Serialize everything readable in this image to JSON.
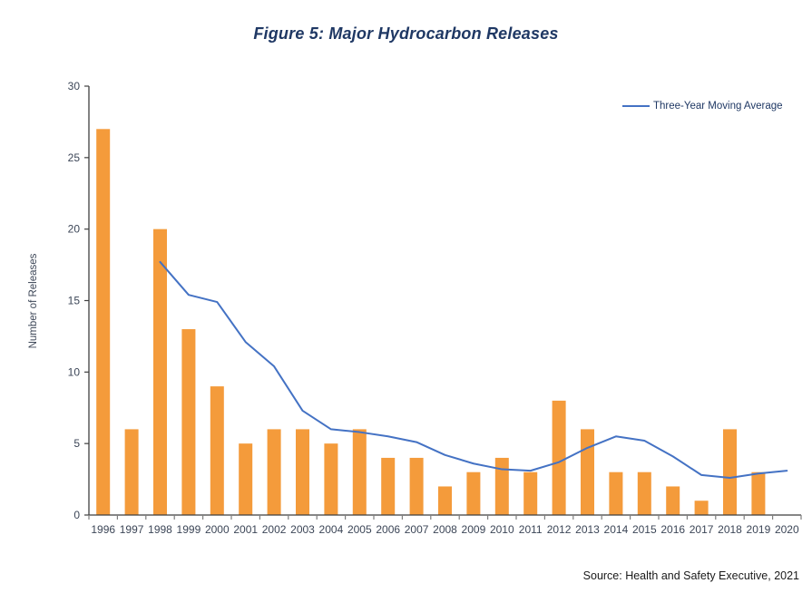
{
  "figure": {
    "title": "Figure 5: Major Hydrocarbon Releases",
    "source": "Source: Health and Safety Executive, 2021"
  },
  "legend": {
    "moving_average_label": "Three-Year Moving Average"
  },
  "y_axis": {
    "title": "Number of Releases",
    "ticks": [
      0,
      5,
      10,
      15,
      20,
      25,
      30
    ],
    "min": 0,
    "max": 30
  },
  "chart_data": {
    "type": "bar",
    "title": "Figure 5: Major Hydrocarbon Releases",
    "xlabel": "",
    "ylabel": "Number of Releases",
    "ylim": [
      0,
      30
    ],
    "grid": false,
    "legend_position": "top-right",
    "categories": [
      "1996",
      "1997",
      "1998",
      "1999",
      "2000",
      "2001",
      "2002",
      "2003",
      "2004",
      "2005",
      "2006",
      "2007",
      "2008",
      "2009",
      "2010",
      "2011",
      "2012",
      "2013",
      "2014",
      "2015",
      "2016",
      "2017",
      "2018",
      "2019",
      "2020"
    ],
    "series": [
      {
        "name": "Major hydrocarbon releases",
        "type": "bar",
        "color": "#F49B3B",
        "values": [
          27,
          6,
          20,
          13,
          9,
          5,
          6,
          6,
          5,
          6,
          4,
          4,
          2,
          3,
          4,
          3,
          8,
          6,
          3,
          3,
          2,
          1,
          6,
          3,
          null
        ]
      },
      {
        "name": "Three-Year Moving Average",
        "type": "line",
        "color": "#4472C4",
        "values": [
          null,
          null,
          17.7,
          15.4,
          14.9,
          12.1,
          10.4,
          7.3,
          6,
          5.8,
          5.5,
          5.1,
          4.2,
          3.6,
          3.2,
          3.1,
          3.7,
          4.7,
          5.5,
          5.2,
          4.1,
          2.8,
          2.6,
          2.9,
          3.1
        ]
      }
    ]
  },
  "colors": {
    "bar": "#F49B3B",
    "line": "#4472C4",
    "title": "#1F3864",
    "axis": "#3F3F3F",
    "tick": "#7F7F7F",
    "label": "#3C4657",
    "source": "#1A1A1A"
  }
}
